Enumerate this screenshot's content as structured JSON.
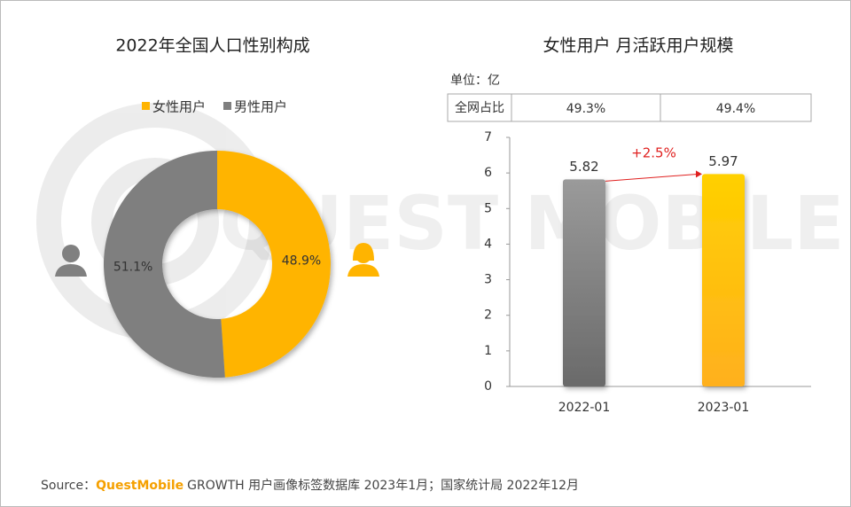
{
  "chart_data": [
    {
      "type": "donut",
      "title": "2022年全国人口性别构成",
      "categories": [
        "女性用户",
        "男性用户"
      ],
      "values": [
        48.9,
        51.1
      ],
      "value_labels": [
        "48.9%",
        "51.1%"
      ],
      "colors": [
        "#FFB400",
        "#7F7F7F"
      ],
      "legend": "top"
    },
    {
      "type": "bar",
      "title": "女性用户 月活跃用户规模",
      "unit": "单位：亿",
      "share_row": {
        "label": "全网占比",
        "values": [
          "49.3%",
          "49.4%"
        ]
      },
      "categories": [
        "2022-01",
        "2023-01"
      ],
      "values": [
        5.82,
        5.97
      ],
      "colors": [
        "#7A7A7A",
        "#FFB400"
      ],
      "annotation": "+2.5%",
      "ylim": [
        0,
        7
      ],
      "yticks": [
        0,
        1,
        2,
        3,
        4,
        5,
        6,
        7
      ]
    }
  ],
  "watermark": "QUEST MOBILE",
  "source": {
    "prefix": "Source：",
    "brand": "QuestMobile",
    "text": "GROWTH 用户画像标签数据库 2023年1月；国家统计局 2022年12月"
  }
}
